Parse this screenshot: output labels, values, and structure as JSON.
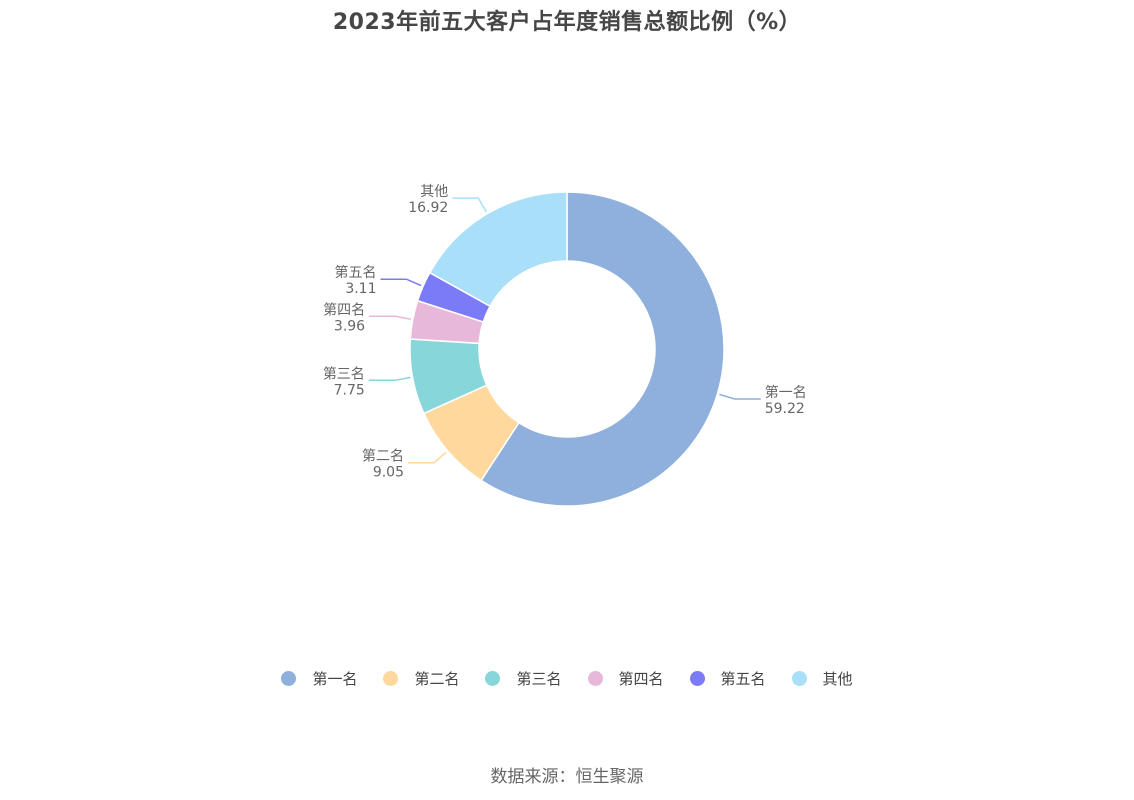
{
  "title": "2023年前五大客户占年度销售总额比例（%）",
  "source": "数据来源：恒生聚源",
  "chart_data": {
    "type": "pie",
    "variant": "donut",
    "title": "2023年前五大客户占年度销售总额比例（%）",
    "categories": [
      "第一名",
      "第二名",
      "第三名",
      "第四名",
      "第五名",
      "其他"
    ],
    "values": [
      59.22,
      9.05,
      7.75,
      3.96,
      3.11,
      16.92
    ],
    "colors": [
      "#8fafdc",
      "#fed89c",
      "#87d6da",
      "#e8b8da",
      "#7b7bf7",
      "#a9dff9"
    ],
    "legend_position": "bottom",
    "start": "top",
    "direction": "clockwise"
  }
}
